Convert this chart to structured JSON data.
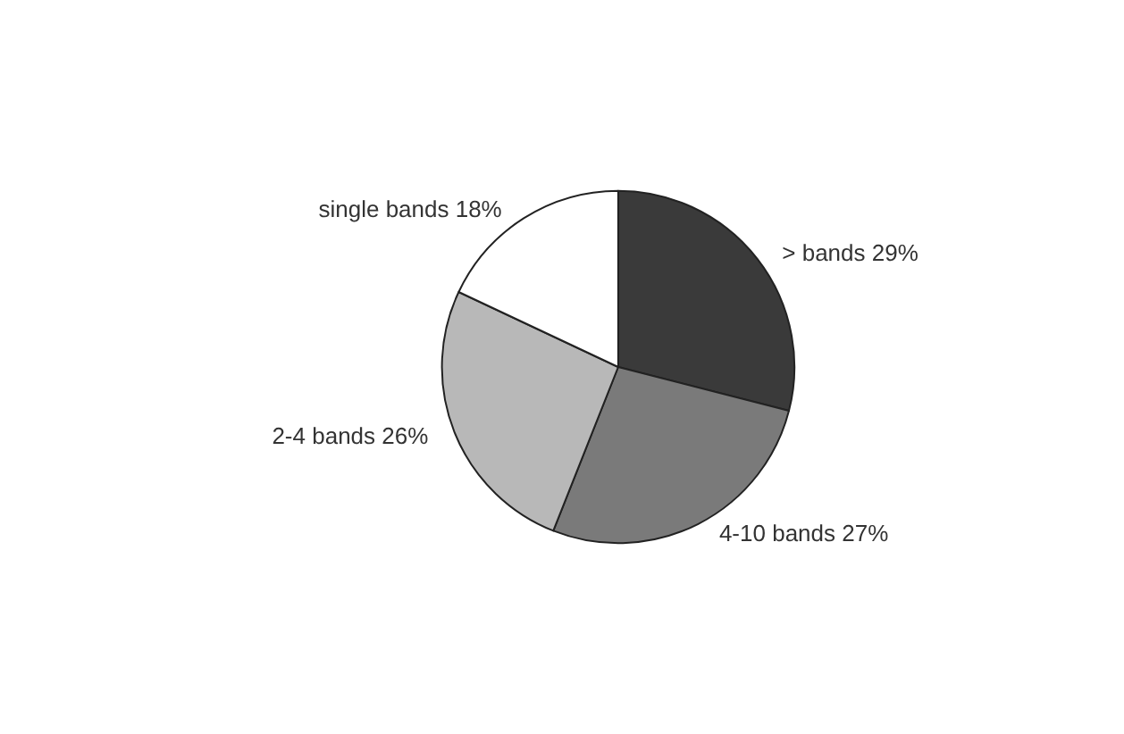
{
  "chart_data": {
    "type": "pie",
    "categories": [
      "> bands",
      "4-10 bands",
      "2-4 bands",
      "single bands"
    ],
    "values": [
      29,
      27,
      26,
      18
    ],
    "value_labels": [
      "29%",
      "27%",
      "26%",
      "18%"
    ],
    "colors": [
      "#3a3a3a",
      "#7a7a7a",
      "#b8b8b8",
      "#ffffff"
    ],
    "legend": false
  }
}
